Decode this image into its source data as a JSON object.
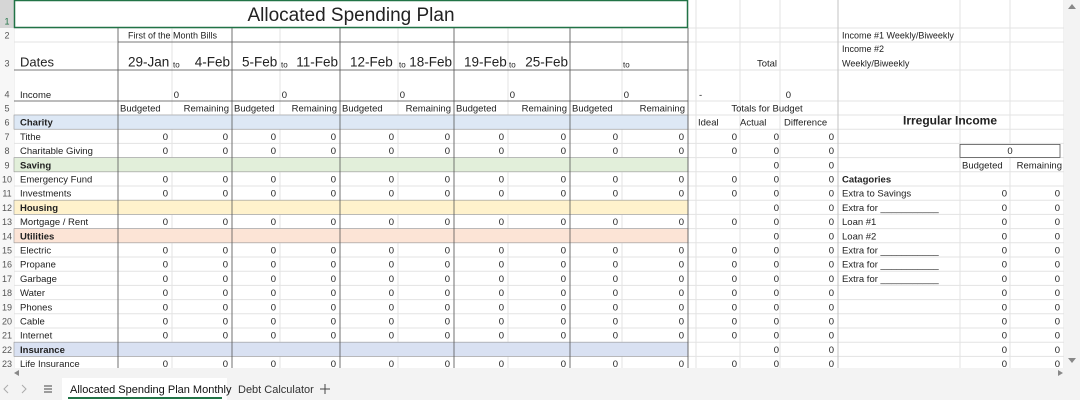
{
  "title": "Allocated Spending Plan",
  "row_numbers": [
    1,
    2,
    3,
    4,
    5,
    6,
    7,
    8,
    9,
    10,
    11,
    12,
    13,
    14,
    15,
    16,
    17,
    18,
    19,
    20,
    21,
    22,
    23
  ],
  "bills_note": "First of the Month Bills",
  "dates_label": "Dates",
  "periods": [
    {
      "start": "29-Jan",
      "to": "to",
      "end": "4-Feb"
    },
    {
      "start": "5-Feb",
      "to": "to",
      "end": "11-Feb"
    },
    {
      "start": "12-Feb",
      "to": "to",
      "end": "18-Feb"
    },
    {
      "start": "19-Feb",
      "to": "to",
      "end": "25-Feb"
    },
    {
      "to": "to"
    }
  ],
  "income_label": "Income",
  "income_values": [
    0,
    0,
    0,
    0,
    0
  ],
  "column_headers": [
    "Budgeted",
    "Remaining",
    "Budgeted",
    "Remaining",
    "Budgeted",
    "Remaining",
    "Budgeted",
    "Remaining",
    "Budgeted",
    "Remaining"
  ],
  "total_label": "Total",
  "total_dash": "-",
  "total_income": 0,
  "totals_header": "Totals for Budget",
  "totals_columns": [
    "Ideal",
    "Actual",
    "Difference"
  ],
  "budget_rows": [
    {
      "label": "Charity",
      "color": "#dde8f5"
    },
    {
      "label": "Tithe",
      "values": [
        0,
        0,
        0,
        0,
        0,
        0,
        0,
        0,
        0,
        0
      ],
      "totals": [
        0,
        0,
        0
      ]
    },
    {
      "label": "Charitable Giving",
      "values": [
        0,
        0,
        0,
        0,
        0,
        0,
        0,
        0,
        0,
        0
      ],
      "totals": [
        0,
        0,
        0
      ]
    },
    {
      "label": "Saving",
      "color": "#e2efda",
      "totals": [
        null,
        0,
        0
      ]
    },
    {
      "label": "Emergency Fund",
      "values": [
        0,
        0,
        0,
        0,
        0,
        0,
        0,
        0,
        0,
        0
      ],
      "totals": [
        0,
        0,
        0
      ]
    },
    {
      "label": "Investments",
      "values": [
        0,
        0,
        0,
        0,
        0,
        0,
        0,
        0,
        0,
        0
      ],
      "totals": [
        0,
        0,
        0
      ]
    },
    {
      "label": "Housing",
      "color": "#fff2cc",
      "totals": [
        null,
        0,
        0
      ]
    },
    {
      "label": "Mortgage / Rent",
      "values": [
        0,
        0,
        0,
        0,
        0,
        0,
        0,
        0,
        0,
        0
      ],
      "totals": [
        0,
        0,
        0
      ]
    },
    {
      "label": "Utilities",
      "color": "#fce4d6",
      "totals": [
        null,
        0,
        0
      ]
    },
    {
      "label": "Electric",
      "values": [
        0,
        0,
        0,
        0,
        0,
        0,
        0,
        0,
        0,
        0
      ],
      "totals": [
        0,
        0,
        0
      ]
    },
    {
      "label": "Propane",
      "values": [
        0,
        0,
        0,
        0,
        0,
        0,
        0,
        0,
        0,
        0
      ],
      "totals": [
        0,
        0,
        0
      ]
    },
    {
      "label": "Garbage",
      "values": [
        0,
        0,
        0,
        0,
        0,
        0,
        0,
        0,
        0,
        0
      ],
      "totals": [
        0,
        0,
        0
      ]
    },
    {
      "label": "Water",
      "values": [
        0,
        0,
        0,
        0,
        0,
        0,
        0,
        0,
        0,
        0
      ],
      "totals": [
        0,
        0,
        0
      ]
    },
    {
      "label": "Phones",
      "values": [
        0,
        0,
        0,
        0,
        0,
        0,
        0,
        0,
        0,
        0
      ],
      "totals": [
        0,
        0,
        0
      ]
    },
    {
      "label": "Cable",
      "values": [
        0,
        0,
        0,
        0,
        0,
        0,
        0,
        0,
        0,
        0
      ],
      "totals": [
        0,
        0,
        0
      ]
    },
    {
      "label": "Internet",
      "values": [
        0,
        0,
        0,
        0,
        0,
        0,
        0,
        0,
        0,
        0
      ],
      "totals": [
        0,
        0,
        0
      ]
    },
    {
      "label": "Insurance",
      "color": "#d9e1f2",
      "totals": [
        null,
        0,
        0
      ]
    },
    {
      "label": "Life Insurance",
      "values": [
        0,
        0,
        0,
        0,
        0,
        0,
        0,
        0,
        0,
        0
      ],
      "totals": [
        0,
        0,
        0
      ]
    }
  ],
  "income_notes": [
    "Income #1 Weekly/Biweekly",
    "Income #2",
    "Weekly/Biweekly"
  ],
  "irregular": {
    "title": "Irregular Income",
    "amount": 0,
    "columns": [
      "Budgeted",
      "Remaining"
    ],
    "categories_label": "Catagories",
    "items": [
      {
        "label": "Extra to Savings",
        "budgeted": 0,
        "remaining": 0
      },
      {
        "label": "Extra for ___________",
        "budgeted": 0,
        "remaining": 0
      },
      {
        "label": "Loan #1",
        "budgeted": 0,
        "remaining": 0
      },
      {
        "label": "Loan #2",
        "budgeted": 0,
        "remaining": 0
      },
      {
        "label": "Extra for ___________",
        "budgeted": 0,
        "remaining": 0
      },
      {
        "label": "Extra for ___________",
        "budgeted": 0,
        "remaining": 0
      },
      {
        "label": "Extra for ___________",
        "budgeted": 0,
        "remaining": 0
      },
      {
        "label": null,
        "budgeted": 0,
        "remaining": 0
      },
      {
        "label": null,
        "budgeted": 0,
        "remaining": 0
      },
      {
        "label": null,
        "budgeted": 0,
        "remaining": 0
      },
      {
        "label": null,
        "budgeted": 0,
        "remaining": 0
      },
      {
        "label": null,
        "budgeted": 0,
        "remaining": 0
      },
      {
        "label": null,
        "budgeted": 0,
        "remaining": 0
      }
    ]
  },
  "sheet_tabs": [
    "Allocated Spending Plan Monthly",
    "Debt Calculator"
  ]
}
